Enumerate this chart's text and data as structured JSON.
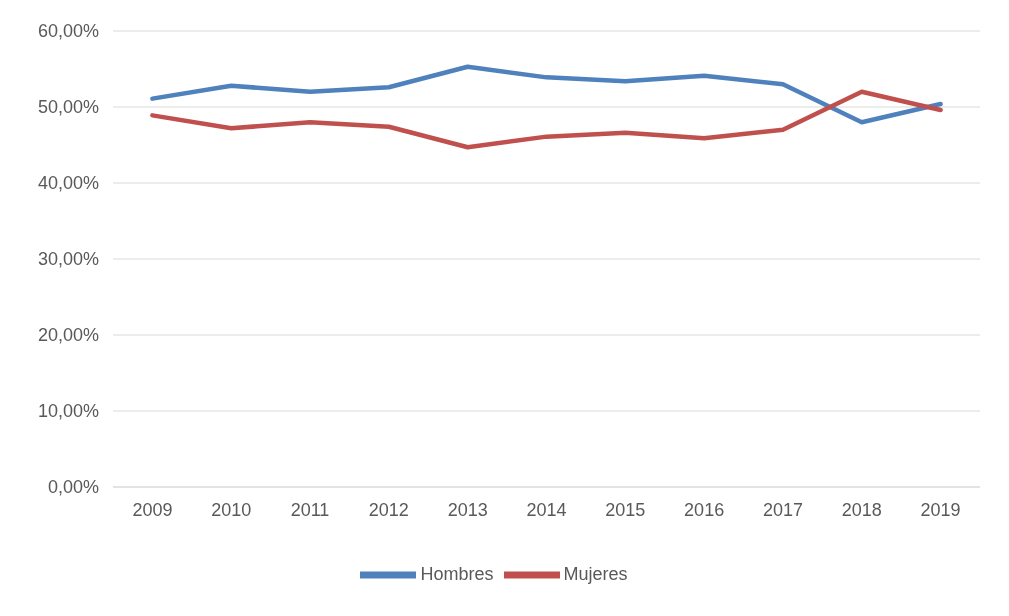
{
  "chart_data": {
    "type": "line",
    "categories": [
      "2009",
      "2010",
      "2011",
      "2012",
      "2013",
      "2014",
      "2015",
      "2016",
      "2017",
      "2018",
      "2019"
    ],
    "series": [
      {
        "name": "Hombres",
        "color": "#4f81bd",
        "values": [
          51.1,
          52.8,
          52.0,
          52.6,
          55.3,
          53.9,
          53.4,
          54.1,
          53.0,
          48.0,
          50.4
        ]
      },
      {
        "name": "Mujeres",
        "color": "#c0504d",
        "values": [
          48.9,
          47.2,
          48.0,
          47.4,
          44.7,
          46.1,
          46.6,
          45.9,
          47.0,
          52.0,
          49.6
        ]
      }
    ],
    "ylim": [
      0,
      60
    ],
    "yticks": [
      {
        "value": 0,
        "label": "0,00%"
      },
      {
        "value": 10,
        "label": "10,00%"
      },
      {
        "value": 20,
        "label": "20,00%"
      },
      {
        "value": 30,
        "label": "30,00%"
      },
      {
        "value": 40,
        "label": "40,00%"
      },
      {
        "value": 50,
        "label": "50,00%"
      },
      {
        "value": 60,
        "label": "60,00%"
      }
    ],
    "grid": "y",
    "legend": "bottom",
    "marker": "none",
    "line_style": "solid"
  }
}
